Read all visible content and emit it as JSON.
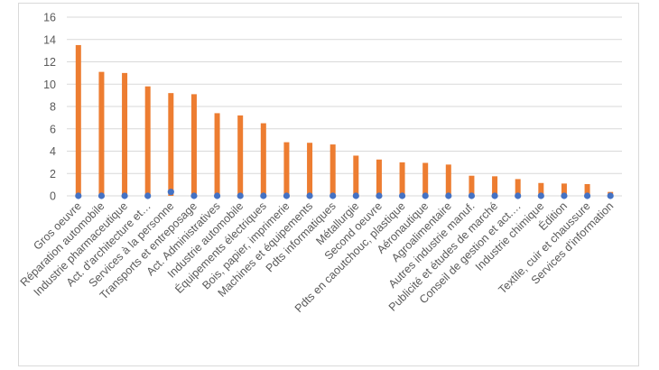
{
  "chart_data": {
    "type": "bar",
    "title": "",
    "xlabel": "",
    "ylabel": "",
    "ylim": [
      0,
      16
    ],
    "yticks": [
      0,
      2,
      4,
      6,
      8,
      10,
      12,
      14,
      16
    ],
    "grid": true,
    "legend": "none",
    "categories": [
      "Gros oeuvre",
      "Réparation automobile",
      "Industrie pharmaceutique",
      "Act. d'architecture et…",
      "Services à la personne",
      "Transports et entreposage",
      "Act. Administratives",
      "Industrie automobile",
      "Équipements électriques",
      "Bois, papier, imprimerie",
      "Machines et équipements",
      "Pdts informatiques",
      "Métallurgie",
      "Second oeuvre",
      "Pdts en caoutchouc, plastique",
      "Aéronautique",
      "Agroalimentaire",
      "Autres industrie manuf.",
      "Publicité et études de marché",
      "Conseil de gestion et act.…",
      "Industrie chimique",
      "Édition",
      "Textile, cuir et chaussure",
      "Services d'information"
    ],
    "series": [
      {
        "type": "bar",
        "color": "#ed7d31",
        "values": [
          13.5,
          11.1,
          11.0,
          9.8,
          9.2,
          9.1,
          7.4,
          7.2,
          6.5,
          4.8,
          4.75,
          4.6,
          3.6,
          3.25,
          3.0,
          2.95,
          2.8,
          1.8,
          1.75,
          1.5,
          1.15,
          1.1,
          1.05,
          0.35
        ]
      },
      {
        "type": "scatter",
        "color": "#4472c4",
        "values": [
          0,
          0,
          0,
          0,
          0.35,
          0,
          0,
          0,
          0,
          0,
          0,
          0,
          0,
          0,
          0,
          0,
          0,
          0,
          0,
          0,
          0,
          0,
          0,
          0
        ]
      }
    ]
  }
}
